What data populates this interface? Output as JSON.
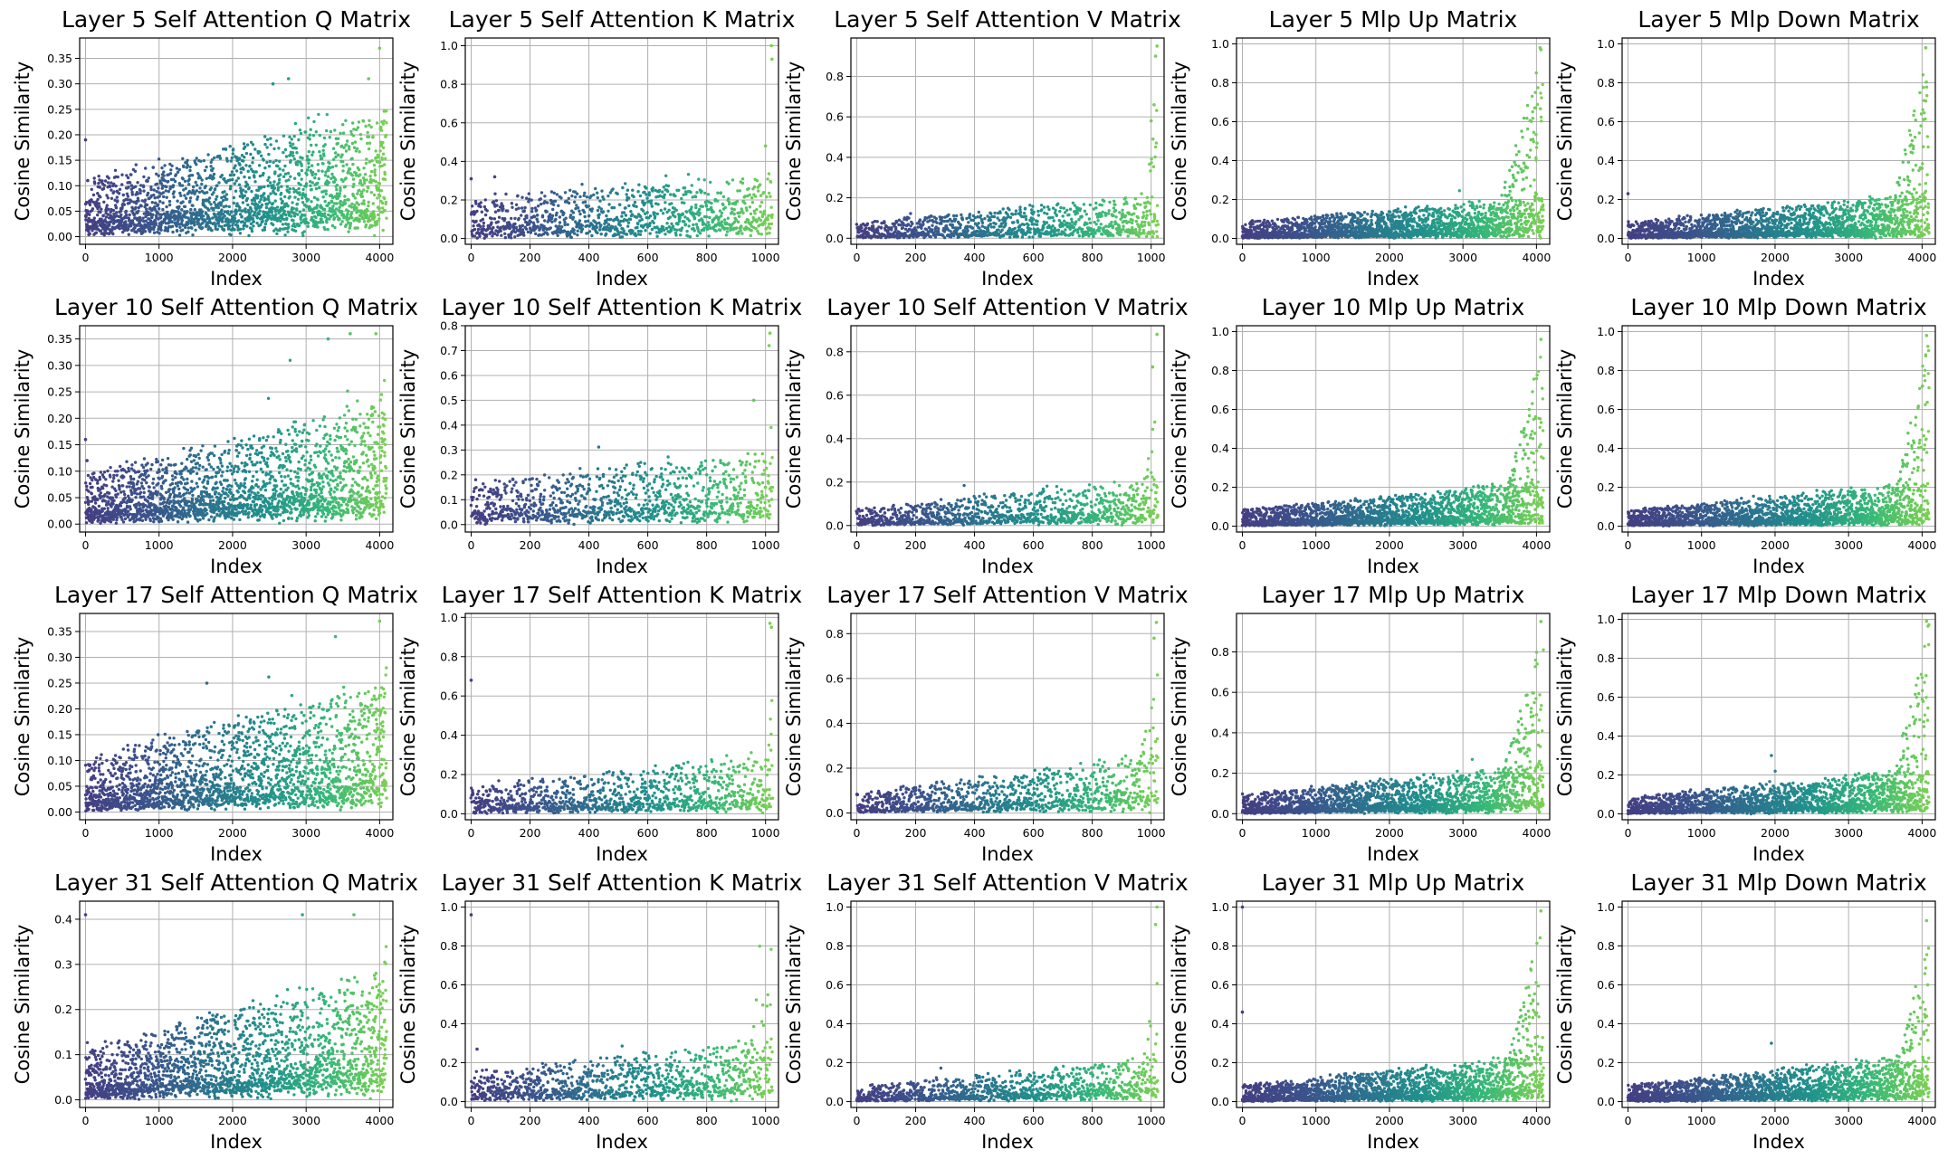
{
  "figure": {
    "rows": 4,
    "cols": 5
  },
  "chart_data": [
    {
      "id": "l5q",
      "type": "scatter",
      "title": "Layer 5 Self Attention Q Matrix",
      "xlabel": "Index",
      "ylabel": "Cosine Similarity",
      "xlim": [
        -80,
        4180
      ],
      "ylim": [
        -0.015,
        0.39
      ],
      "xticks": [
        0,
        1000,
        2000,
        3000,
        4000
      ],
      "yticks": [
        0.0,
        0.05,
        0.1,
        0.15,
        0.2,
        0.25,
        0.3,
        0.35
      ],
      "ytick_decimals": 2,
      "n_points": 4096,
      "grid": true,
      "colormap": "viridis",
      "trend": {
        "base": 0.03,
        "base_growth": 0.04,
        "spread": 0.09,
        "spread_growth": 0.12,
        "tail_start": 0.96,
        "tail_max": 0.36
      },
      "points": [
        {
          "x": 0,
          "y": 0.19
        },
        {
          "x": 30,
          "y": 0.11
        },
        {
          "x": 4000,
          "y": 0.37
        },
        {
          "x": 3850,
          "y": 0.31
        },
        {
          "x": 2550,
          "y": 0.3
        },
        {
          "x": 2760,
          "y": 0.31
        }
      ]
    },
    {
      "id": "l5k",
      "type": "scatter",
      "title": "Layer 5 Self Attention K Matrix",
      "xlabel": "Index",
      "ylabel": "Cosine Similarity",
      "xlim": [
        -20,
        1044
      ],
      "ylim": [
        -0.03,
        1.04
      ],
      "xticks": [
        0,
        200,
        400,
        600,
        800,
        1000
      ],
      "yticks": [
        0.0,
        0.2,
        0.4,
        0.6,
        0.8,
        1.0
      ],
      "ytick_decimals": 1,
      "n_points": 1024,
      "grid": true,
      "colormap": "viridis",
      "trend": {
        "base": 0.05,
        "base_growth": 0.05,
        "spread": 0.18,
        "spread_growth": 0.12,
        "tail_start": 0.98,
        "tail_max": 0.5
      },
      "points": [
        {
          "x": 0,
          "y": 0.31
        },
        {
          "x": 1020,
          "y": 1.0
        },
        {
          "x": 1022,
          "y": 0.93
        },
        {
          "x": 1000,
          "y": 0.48
        },
        {
          "x": 80,
          "y": 0.32
        }
      ]
    },
    {
      "id": "l5v",
      "type": "scatter",
      "title": "Layer 5 Self Attention V Matrix",
      "xlabel": "Index",
      "ylabel": "Cosine Similarity",
      "xlim": [
        -20,
        1044
      ],
      "ylim": [
        -0.03,
        0.99
      ],
      "xticks": [
        0,
        200,
        400,
        600,
        800,
        1000
      ],
      "yticks": [
        0.0,
        0.2,
        0.4,
        0.6,
        0.8
      ],
      "ytick_decimals": 1,
      "n_points": 1024,
      "grid": true,
      "colormap": "viridis",
      "trend": {
        "base": 0.01,
        "base_growth": 0.04,
        "spread": 0.07,
        "spread_growth": 0.12,
        "tail_start": 0.94,
        "tail_max": 0.7
      },
      "points": [
        {
          "x": 1020,
          "y": 0.95
        },
        {
          "x": 1015,
          "y": 0.9
        },
        {
          "x": 1010,
          "y": 0.66
        },
        {
          "x": 1000,
          "y": 0.58
        }
      ]
    },
    {
      "id": "l5up",
      "type": "scatter",
      "title": "Layer 5 Mlp Up Matrix",
      "xlabel": "Index",
      "ylabel": "Cosine Similarity",
      "xlim": [
        -80,
        4180
      ],
      "ylim": [
        -0.03,
        1.03
      ],
      "xticks": [
        0,
        1000,
        2000,
        3000,
        4000
      ],
      "yticks": [
        0.0,
        0.2,
        0.4,
        0.6,
        0.8,
        1.0
      ],
      "ytick_decimals": 1,
      "n_points": 4096,
      "grid": true,
      "colormap": "viridis",
      "trend": {
        "base": 0.01,
        "base_growth": 0.04,
        "spread": 0.08,
        "spread_growth": 0.1,
        "tail_start": 0.82,
        "tail_max": 0.98
      },
      "points": [
        {
          "x": 4050,
          "y": 0.98
        },
        {
          "x": 4060,
          "y": 0.97
        }
      ]
    },
    {
      "id": "l5down",
      "type": "scatter",
      "title": "Layer 5 Mlp Down Matrix",
      "xlabel": "Index",
      "ylabel": "Cosine Similarity",
      "xlim": [
        -80,
        4180
      ],
      "ylim": [
        -0.03,
        1.03
      ],
      "xticks": [
        0,
        1000,
        2000,
        3000,
        4000
      ],
      "yticks": [
        0.0,
        0.2,
        0.4,
        0.6,
        0.8,
        1.0
      ],
      "ytick_decimals": 1,
      "n_points": 4096,
      "grid": true,
      "colormap": "viridis",
      "trend": {
        "base": 0.01,
        "base_growth": 0.04,
        "spread": 0.08,
        "spread_growth": 0.12,
        "tail_start": 0.85,
        "tail_max": 0.99
      },
      "points": [
        {
          "x": 0,
          "y": 0.23
        },
        {
          "x": 4050,
          "y": 0.98
        }
      ]
    },
    {
      "id": "l10q",
      "type": "scatter",
      "title": "Layer 10 Self Attention Q Matrix",
      "xlabel": "Index",
      "ylabel": "Cosine Similarity",
      "xlim": [
        -80,
        4180
      ],
      "ylim": [
        -0.015,
        0.375
      ],
      "xticks": [
        0,
        1000,
        2000,
        3000,
        4000
      ],
      "yticks": [
        0.0,
        0.05,
        0.1,
        0.15,
        0.2,
        0.25,
        0.3,
        0.35
      ],
      "ytick_decimals": 2,
      "n_points": 4096,
      "grid": true,
      "colormap": "viridis",
      "trend": {
        "base": 0.02,
        "base_growth": 0.04,
        "spread": 0.08,
        "spread_growth": 0.12,
        "tail_start": 0.92,
        "tail_max": 0.32
      },
      "points": [
        {
          "x": 0,
          "y": 0.16
        },
        {
          "x": 20,
          "y": 0.12
        },
        {
          "x": 3600,
          "y": 0.36
        },
        {
          "x": 3300,
          "y": 0.35
        },
        {
          "x": 3950,
          "y": 0.36
        }
      ]
    },
    {
      "id": "l10k",
      "type": "scatter",
      "title": "Layer 10 Self Attention K Matrix",
      "xlabel": "Index",
      "ylabel": "Cosine Similarity",
      "xlim": [
        -20,
        1044
      ],
      "ylim": [
        -0.03,
        0.8
      ],
      "xticks": [
        0,
        200,
        400,
        600,
        800,
        1000
      ],
      "yticks": [
        0.0,
        0.1,
        0.2,
        0.3,
        0.4,
        0.5,
        0.6,
        0.7,
        0.8
      ],
      "ytick_decimals": 1,
      "n_points": 1024,
      "grid": true,
      "colormap": "viridis",
      "trend": {
        "base": 0.04,
        "base_growth": 0.04,
        "spread": 0.14,
        "spread_growth": 0.12,
        "tail_start": 0.95,
        "tail_max": 0.55
      },
      "points": [
        {
          "x": 1015,
          "y": 0.77
        },
        {
          "x": 1012,
          "y": 0.72
        },
        {
          "x": 960,
          "y": 0.5
        }
      ]
    },
    {
      "id": "l10v",
      "type": "scatter",
      "title": "Layer 10 Self Attention V Matrix",
      "xlabel": "Index",
      "ylabel": "Cosine Similarity",
      "xlim": [
        -20,
        1044
      ],
      "ylim": [
        -0.03,
        0.92
      ],
      "xticks": [
        0,
        200,
        400,
        600,
        800,
        1000
      ],
      "yticks": [
        0.0,
        0.2,
        0.4,
        0.6,
        0.8
      ],
      "ytick_decimals": 1,
      "n_points": 1024,
      "grid": true,
      "colormap": "viridis",
      "trend": {
        "base": 0.01,
        "base_growth": 0.05,
        "spread": 0.07,
        "spread_growth": 0.12,
        "tail_start": 0.93,
        "tail_max": 0.7
      },
      "points": [
        {
          "x": 1020,
          "y": 0.88
        },
        {
          "x": 1005,
          "y": 0.73
        }
      ]
    },
    {
      "id": "l10up",
      "type": "scatter",
      "title": "Layer 10 Mlp Up Matrix",
      "xlabel": "Index",
      "ylabel": "Cosine Similarity",
      "xlim": [
        -80,
        4180
      ],
      "ylim": [
        -0.03,
        1.03
      ],
      "xticks": [
        0,
        1000,
        2000,
        3000,
        4000
      ],
      "yticks": [
        0.0,
        0.2,
        0.4,
        0.6,
        0.8,
        1.0
      ],
      "ytick_decimals": 1,
      "n_points": 4096,
      "grid": true,
      "colormap": "viridis",
      "trend": {
        "base": 0.01,
        "base_growth": 0.04,
        "spread": 0.08,
        "spread_growth": 0.12,
        "tail_start": 0.85,
        "tail_max": 0.97
      },
      "points": [
        {
          "x": 4060,
          "y": 0.96
        }
      ]
    },
    {
      "id": "l10down",
      "type": "scatter",
      "title": "Layer 10 Mlp Down Matrix",
      "xlabel": "Index",
      "ylabel": "Cosine Similarity",
      "xlim": [
        -80,
        4180
      ],
      "ylim": [
        -0.03,
        1.03
      ],
      "xticks": [
        0,
        1000,
        2000,
        3000,
        4000
      ],
      "yticks": [
        0.0,
        0.2,
        0.4,
        0.6,
        0.8,
        1.0
      ],
      "ytick_decimals": 1,
      "n_points": 4096,
      "grid": true,
      "colormap": "viridis",
      "trend": {
        "base": 0.01,
        "base_growth": 0.04,
        "spread": 0.08,
        "spread_growth": 0.12,
        "tail_start": 0.86,
        "tail_max": 0.98
      },
      "points": [
        {
          "x": 4060,
          "y": 0.98
        }
      ]
    },
    {
      "id": "l17q",
      "type": "scatter",
      "title": "Layer 17 Self Attention Q Matrix",
      "xlabel": "Index",
      "ylabel": "Cosine Similarity",
      "xlim": [
        -80,
        4180
      ],
      "ylim": [
        -0.015,
        0.385
      ],
      "xticks": [
        0,
        1000,
        2000,
        3000,
        4000
      ],
      "yticks": [
        0.0,
        0.05,
        0.1,
        0.15,
        0.2,
        0.25,
        0.3,
        0.35
      ],
      "ytick_decimals": 2,
      "n_points": 4096,
      "grid": true,
      "colormap": "viridis",
      "trend": {
        "base": 0.02,
        "base_growth": 0.04,
        "spread": 0.09,
        "spread_growth": 0.13,
        "tail_start": 0.93,
        "tail_max": 0.33
      },
      "points": [
        {
          "x": 4000,
          "y": 0.37
        },
        {
          "x": 3400,
          "y": 0.34
        },
        {
          "x": 1650,
          "y": 0.25
        }
      ]
    },
    {
      "id": "l17k",
      "type": "scatter",
      "title": "Layer 17 Self Attention K Matrix",
      "xlabel": "Index",
      "ylabel": "Cosine Similarity",
      "xlim": [
        -20,
        1044
      ],
      "ylim": [
        -0.03,
        1.02
      ],
      "xticks": [
        0,
        200,
        400,
        600,
        800,
        1000
      ],
      "yticks": [
        0.0,
        0.2,
        0.4,
        0.6,
        0.8,
        1.0
      ],
      "ytick_decimals": 1,
      "n_points": 1024,
      "grid": true,
      "colormap": "viridis",
      "trend": {
        "base": 0.03,
        "base_growth": 0.04,
        "spread": 0.12,
        "spread_growth": 0.15,
        "tail_start": 0.96,
        "tail_max": 0.6
      },
      "points": [
        {
          "x": 0,
          "y": 0.68
        },
        {
          "x": 1015,
          "y": 0.97
        },
        {
          "x": 1020,
          "y": 0.95
        }
      ]
    },
    {
      "id": "l17v",
      "type": "scatter",
      "title": "Layer 17 Self Attention V Matrix",
      "xlabel": "Index",
      "ylabel": "Cosine Similarity",
      "xlim": [
        -20,
        1044
      ],
      "ylim": [
        -0.03,
        0.89
      ],
      "xticks": [
        0,
        200,
        400,
        600,
        800,
        1000
      ],
      "yticks": [
        0.0,
        0.2,
        0.4,
        0.6,
        0.8
      ],
      "ytick_decimals": 1,
      "n_points": 1024,
      "grid": true,
      "colormap": "viridis",
      "trend": {
        "base": 0.01,
        "base_growth": 0.06,
        "spread": 0.08,
        "spread_growth": 0.15,
        "tail_start": 0.9,
        "tail_max": 0.65
      },
      "points": [
        {
          "x": 1018,
          "y": 0.85
        },
        {
          "x": 1010,
          "y": 0.78
        }
      ]
    },
    {
      "id": "l17up",
      "type": "scatter",
      "title": "Layer 17 Mlp Up Matrix",
      "xlabel": "Index",
      "ylabel": "Cosine Similarity",
      "xlim": [
        -80,
        4180
      ],
      "ylim": [
        -0.03,
        0.99
      ],
      "xticks": [
        0,
        1000,
        2000,
        3000,
        4000
      ],
      "yticks": [
        0.0,
        0.2,
        0.4,
        0.6,
        0.8
      ],
      "ytick_decimals": 1,
      "n_points": 4096,
      "grid": true,
      "colormap": "viridis",
      "trend": {
        "base": 0.01,
        "base_growth": 0.05,
        "spread": 0.09,
        "spread_growth": 0.12,
        "tail_start": 0.82,
        "tail_max": 0.93
      },
      "points": [
        {
          "x": 4060,
          "y": 0.95
        }
      ]
    },
    {
      "id": "l17down",
      "type": "scatter",
      "title": "Layer 17 Mlp Down Matrix",
      "xlabel": "Index",
      "ylabel": "Cosine Similarity",
      "xlim": [
        -80,
        4180
      ],
      "ylim": [
        -0.03,
        1.03
      ],
      "xticks": [
        0,
        1000,
        2000,
        3000,
        4000
      ],
      "yticks": [
        0.0,
        0.2,
        0.4,
        0.6,
        0.8,
        1.0
      ],
      "ytick_decimals": 1,
      "n_points": 4096,
      "grid": true,
      "colormap": "viridis",
      "trend": {
        "base": 0.01,
        "base_growth": 0.05,
        "spread": 0.08,
        "spread_growth": 0.12,
        "tail_start": 0.85,
        "tail_max": 0.99
      },
      "points": [
        {
          "x": 4060,
          "y": 0.99
        },
        {
          "x": 1950,
          "y": 0.3
        }
      ]
    },
    {
      "id": "l31q",
      "type": "scatter",
      "title": "Layer 31 Self Attention Q Matrix",
      "xlabel": "Index",
      "ylabel": "Cosine Similarity",
      "xlim": [
        -80,
        4180
      ],
      "ylim": [
        -0.017,
        0.44
      ],
      "xticks": [
        0,
        1000,
        2000,
        3000,
        4000
      ],
      "yticks": [
        0.0,
        0.1,
        0.2,
        0.3,
        0.4
      ],
      "ytick_decimals": 1,
      "n_points": 4096,
      "grid": true,
      "colormap": "viridis",
      "trend": {
        "base": 0.02,
        "base_growth": 0.05,
        "spread": 0.1,
        "spread_growth": 0.15,
        "tail_start": 0.94,
        "tail_max": 0.36
      },
      "points": [
        {
          "x": 0,
          "y": 0.41
        },
        {
          "x": 2950,
          "y": 0.41
        },
        {
          "x": 3650,
          "y": 0.41
        },
        {
          "x": 20,
          "y": 0.09
        }
      ]
    },
    {
      "id": "l31k",
      "type": "scatter",
      "title": "Layer 31 Self Attention K Matrix",
      "xlabel": "Index",
      "ylabel": "Cosine Similarity",
      "xlim": [
        -20,
        1044
      ],
      "ylim": [
        -0.03,
        1.03
      ],
      "xticks": [
        0,
        200,
        400,
        600,
        800,
        1000
      ],
      "yticks": [
        0.0,
        0.2,
        0.4,
        0.6,
        0.8,
        1.0
      ],
      "ytick_decimals": 1,
      "n_points": 1024,
      "grid": true,
      "colormap": "viridis",
      "trend": {
        "base": 0.04,
        "base_growth": 0.05,
        "spread": 0.12,
        "spread_growth": 0.15,
        "tail_start": 0.87,
        "tail_max": 0.95
      },
      "points": [
        {
          "x": 0,
          "y": 0.96
        },
        {
          "x": 20,
          "y": 0.27
        }
      ]
    },
    {
      "id": "l31v",
      "type": "scatter",
      "title": "Layer 31 Self Attention V Matrix",
      "xlabel": "Index",
      "ylabel": "Cosine Similarity",
      "xlim": [
        -20,
        1044
      ],
      "ylim": [
        -0.03,
        1.03
      ],
      "xticks": [
        0,
        200,
        400,
        600,
        800,
        1000
      ],
      "yticks": [
        0.0,
        0.2,
        0.4,
        0.6,
        0.8,
        1.0
      ],
      "ytick_decimals": 1,
      "n_points": 1024,
      "grid": true,
      "colormap": "viridis",
      "trend": {
        "base": 0.01,
        "base_growth": 0.05,
        "spread": 0.07,
        "spread_growth": 0.12,
        "tail_start": 0.93,
        "tail_max": 0.7
      },
      "points": [
        {
          "x": 1020,
          "y": 1.0
        },
        {
          "x": 1015,
          "y": 0.91
        }
      ]
    },
    {
      "id": "l31up",
      "type": "scatter",
      "title": "Layer 31 Mlp Up Matrix",
      "xlabel": "Index",
      "ylabel": "Cosine Similarity",
      "xlim": [
        -80,
        4180
      ],
      "ylim": [
        -0.03,
        1.03
      ],
      "xticks": [
        0,
        1000,
        2000,
        3000,
        4000
      ],
      "yticks": [
        0.0,
        0.2,
        0.4,
        0.6,
        0.8,
        1.0
      ],
      "ytick_decimals": 1,
      "n_points": 4096,
      "grid": true,
      "colormap": "viridis",
      "trend": {
        "base": 0.01,
        "base_growth": 0.05,
        "spread": 0.08,
        "spread_growth": 0.13,
        "tail_start": 0.84,
        "tail_max": 0.95
      },
      "points": [
        {
          "x": 0,
          "y": 1.0
        },
        {
          "x": 0,
          "y": 0.46
        },
        {
          "x": 4060,
          "y": 0.98
        }
      ]
    },
    {
      "id": "l31down",
      "type": "scatter",
      "title": "Layer 31 Mlp Down Matrix",
      "xlabel": "Index",
      "ylabel": "Cosine Similarity",
      "xlim": [
        -80,
        4180
      ],
      "ylim": [
        -0.03,
        1.03
      ],
      "xticks": [
        0,
        1000,
        2000,
        3000,
        4000
      ],
      "yticks": [
        0.0,
        0.2,
        0.4,
        0.6,
        0.8,
        1.0
      ],
      "ytick_decimals": 1,
      "n_points": 4096,
      "grid": true,
      "colormap": "viridis",
      "trend": {
        "base": 0.01,
        "base_growth": 0.05,
        "spread": 0.08,
        "spread_growth": 0.13,
        "tail_start": 0.87,
        "tail_max": 0.93
      },
      "points": [
        {
          "x": 4060,
          "y": 0.93
        },
        {
          "x": 1950,
          "y": 0.3
        }
      ]
    }
  ]
}
